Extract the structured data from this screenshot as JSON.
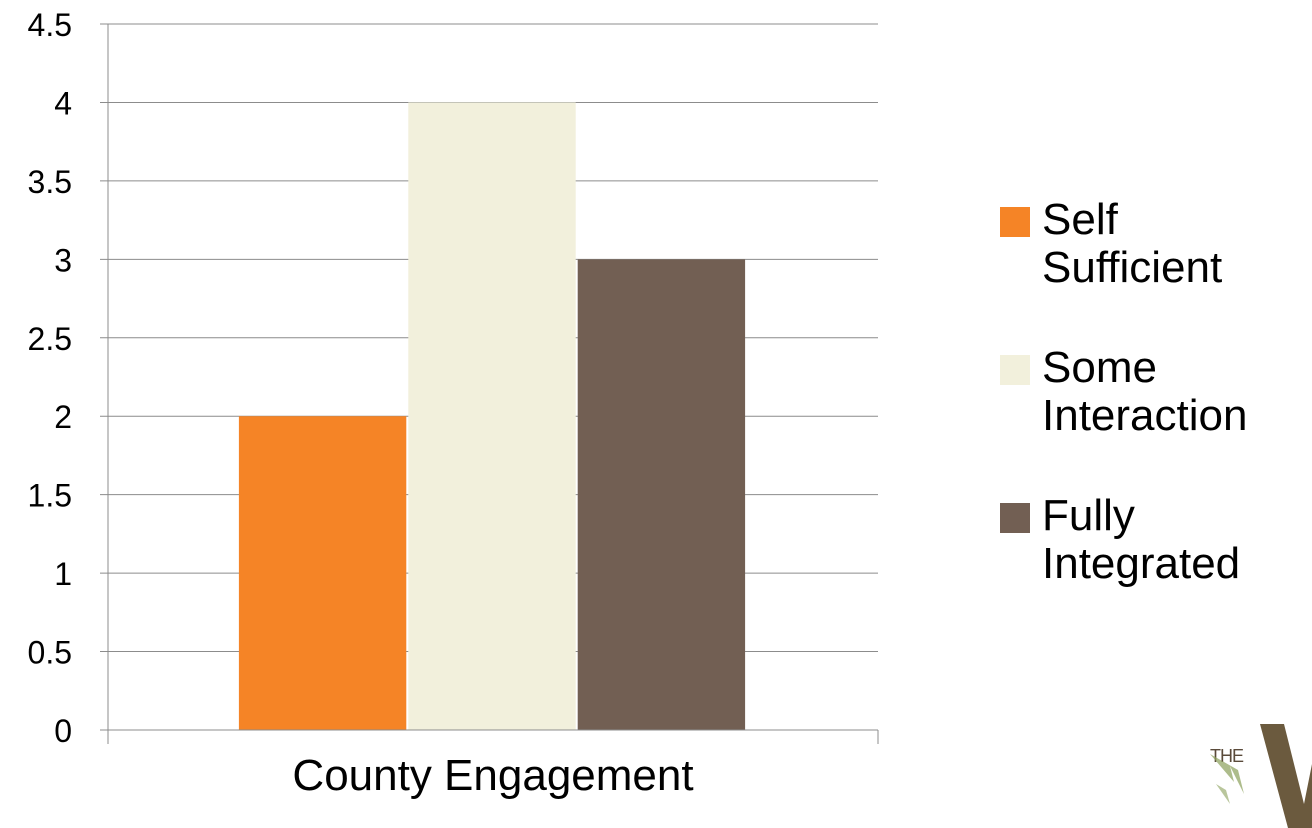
{
  "chart_data": {
    "type": "bar",
    "categories": [
      "County Engagement"
    ],
    "series": [
      {
        "name": "Self Sufficient",
        "values": [
          2
        ],
        "color": "#f58426"
      },
      {
        "name": "Some Interaction",
        "values": [
          4
        ],
        "color": "#f2f0dc"
      },
      {
        "name": "Fully Integrated",
        "values": [
          3
        ],
        "color": "#725f53"
      }
    ],
    "title": "",
    "xlabel": "",
    "ylabel": "",
    "ylim": [
      0,
      4.5
    ],
    "yticks": [
      "0",
      "0.5",
      "1",
      "1.5",
      "2",
      "2.5",
      "3",
      "3.5",
      "4",
      "4.5"
    ],
    "grid": true,
    "legend_position": "right"
  },
  "legend": {
    "items": [
      {
        "line1": "Self",
        "line2": "Sufficient",
        "color": "#f58426"
      },
      {
        "line1": "Some",
        "line2": "Interaction",
        "color": "#f2f0dc"
      },
      {
        "line1": "Fully",
        "line2": "Integrated",
        "color": "#725f53"
      }
    ]
  },
  "logo": {
    "text": "THE",
    "icon": "the-v-logo",
    "color": "#6b5a3e",
    "leaf_color": "#8aa05a"
  }
}
